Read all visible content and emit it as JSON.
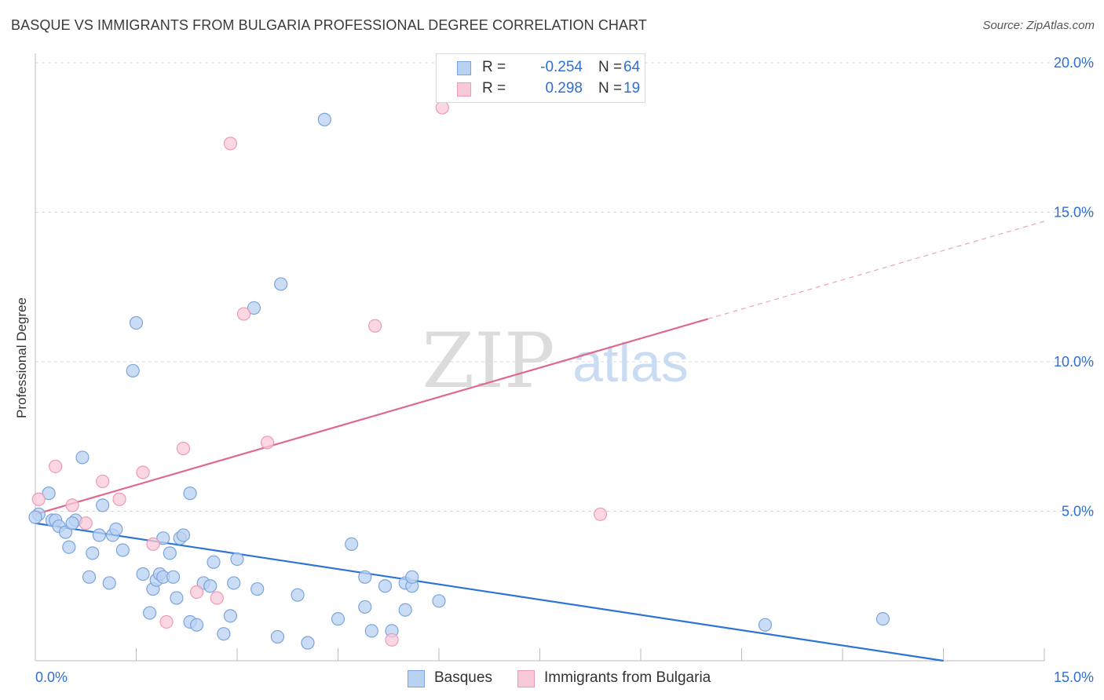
{
  "header": {
    "title": "BASQUE VS IMMIGRANTS FROM BULGARIA PROFESSIONAL DEGREE CORRELATION CHART",
    "source": "Source: ZipAtlas.com"
  },
  "watermark": {
    "zip": "ZIP",
    "atlas": "atlas"
  },
  "legend": {
    "series": [
      {
        "r_label": "R =",
        "r_value": "-0.254",
        "n_label": "N =",
        "n_value": "64"
      },
      {
        "r_label": "R =",
        "r_value": "0.298",
        "n_label": "N =",
        "n_value": "19"
      }
    ]
  },
  "bottom_legend": [
    "Basques",
    "Immigrants from Bulgaria"
  ],
  "colors": {
    "blue_fill": "#b9d2f2",
    "blue_stroke": "#7aa4dd",
    "blue_line": "#2e74d4",
    "pink_fill": "#f8c9d8",
    "pink_stroke": "#ef9ab5",
    "pink_line": "#e0688f",
    "tick_label": "#2f6fd0",
    "grid": "#d8d8d8",
    "axis": "#bbbbbb"
  },
  "chart_data": {
    "type": "scatter",
    "title": "BASQUE VS IMMIGRANTS FROM BULGARIA PROFESSIONAL DEGREE CORRELATION CHART",
    "xlabel": "",
    "ylabel": "Professional Degree",
    "xlim": [
      0,
      15
    ],
    "ylim": [
      0,
      20
    ],
    "x_tick_labels": [
      {
        "value": 0,
        "label": "0.0%"
      },
      {
        "value": 15,
        "label": "15.0%"
      }
    ],
    "y_tick_labels": [
      {
        "value": 5,
        "label": "5.0%"
      },
      {
        "value": 10,
        "label": "10.0%"
      },
      {
        "value": 15,
        "label": "15.0%"
      },
      {
        "value": 20,
        "label": "20.0%"
      }
    ],
    "series": [
      {
        "name": "Basques",
        "r": -0.254,
        "n": 64,
        "trend": {
          "x0": 0,
          "y0": 4.6,
          "x1": 13.5,
          "y1": 0,
          "solid_end": 13.5
        },
        "points": [
          [
            0.05,
            4.9
          ],
          [
            0.2,
            5.6
          ],
          [
            0.25,
            4.7
          ],
          [
            0.3,
            4.7
          ],
          [
            0.35,
            4.5
          ],
          [
            0.45,
            4.3
          ],
          [
            0.5,
            3.8
          ],
          [
            0.6,
            4.7
          ],
          [
            0.7,
            6.8
          ],
          [
            0.8,
            2.8
          ],
          [
            0.85,
            3.6
          ],
          [
            0.95,
            4.2
          ],
          [
            1.0,
            5.2
          ],
          [
            1.1,
            2.6
          ],
          [
            1.15,
            4.2
          ],
          [
            1.2,
            4.4
          ],
          [
            1.3,
            3.7
          ],
          [
            1.45,
            9.7
          ],
          [
            1.5,
            11.3
          ],
          [
            1.6,
            2.9
          ],
          [
            1.7,
            1.6
          ],
          [
            1.75,
            2.4
          ],
          [
            1.8,
            2.7
          ],
          [
            1.85,
            2.9
          ],
          [
            1.9,
            4.1
          ],
          [
            1.9,
            2.8
          ],
          [
            2.0,
            3.6
          ],
          [
            2.05,
            2.8
          ],
          [
            2.1,
            2.1
          ],
          [
            2.15,
            4.1
          ],
          [
            2.2,
            4.2
          ],
          [
            2.3,
            1.3
          ],
          [
            2.3,
            5.6
          ],
          [
            2.4,
            1.2
          ],
          [
            2.5,
            2.6
          ],
          [
            2.6,
            2.5
          ],
          [
            2.65,
            3.3
          ],
          [
            2.8,
            0.9
          ],
          [
            2.9,
            1.5
          ],
          [
            2.95,
            2.6
          ],
          [
            3.0,
            3.4
          ],
          [
            3.25,
            11.8
          ],
          [
            3.3,
            2.4
          ],
          [
            3.6,
            0.8
          ],
          [
            3.65,
            12.6
          ],
          [
            3.9,
            2.2
          ],
          [
            4.05,
            0.6
          ],
          [
            4.3,
            18.1
          ],
          [
            4.5,
            1.4
          ],
          [
            4.7,
            3.9
          ],
          [
            4.9,
            2.8
          ],
          [
            4.9,
            1.8
          ],
          [
            5.0,
            1.0
          ],
          [
            5.2,
            2.5
          ],
          [
            5.3,
            1.0
          ],
          [
            5.5,
            1.7
          ],
          [
            5.5,
            2.6
          ],
          [
            5.6,
            2.5
          ],
          [
            5.6,
            2.8
          ],
          [
            6.0,
            2.0
          ],
          [
            10.85,
            1.2
          ],
          [
            12.6,
            1.4
          ],
          [
            0.0,
            4.8
          ],
          [
            0.55,
            4.6
          ]
        ]
      },
      {
        "name": "Immigrants from Bulgaria",
        "r": 0.298,
        "n": 19,
        "trend": {
          "x0": 0,
          "y0": 4.9,
          "x1": 15,
          "y1": 14.7,
          "solid_end": 10.0
        },
        "points": [
          [
            0.05,
            5.4
          ],
          [
            0.3,
            6.5
          ],
          [
            0.55,
            5.2
          ],
          [
            0.75,
            4.6
          ],
          [
            1.0,
            6.0
          ],
          [
            1.25,
            5.4
          ],
          [
            1.6,
            6.3
          ],
          [
            1.75,
            3.9
          ],
          [
            1.95,
            1.3
          ],
          [
            2.2,
            7.1
          ],
          [
            2.4,
            2.3
          ],
          [
            2.7,
            2.1
          ],
          [
            2.9,
            17.3
          ],
          [
            3.1,
            11.6
          ],
          [
            3.45,
            7.3
          ],
          [
            5.05,
            11.2
          ],
          [
            5.3,
            0.7
          ],
          [
            6.05,
            18.5
          ],
          [
            8.4,
            4.9
          ]
        ]
      }
    ]
  }
}
